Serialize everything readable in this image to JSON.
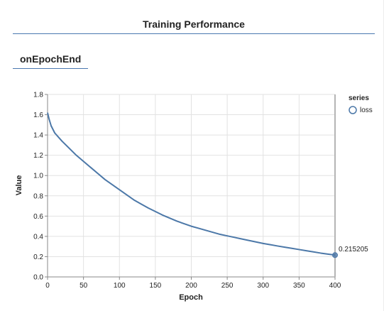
{
  "visor": {
    "title": "Training Performance"
  },
  "surface": {
    "tab_label": "onEpochEnd"
  },
  "chart_data": {
    "type": "line",
    "title": "",
    "xlabel": "Epoch",
    "ylabel": "Value",
    "xlim": [
      0,
      400
    ],
    "ylim": [
      0,
      1.8
    ],
    "x_ticks": [
      0,
      50,
      100,
      150,
      200,
      250,
      300,
      350,
      400
    ],
    "y_ticks": [
      0.0,
      0.2,
      0.4,
      0.6,
      0.8,
      1.0,
      1.2,
      1.4,
      1.6,
      1.8
    ],
    "grid": true,
    "legend": {
      "title": "series",
      "placement": "right"
    },
    "series": [
      {
        "name": "loss",
        "color": "#4c78a8",
        "x": [
          0,
          2,
          5,
          10,
          20,
          30,
          40,
          50,
          60,
          70,
          80,
          90,
          100,
          110,
          120,
          130,
          140,
          150,
          160,
          170,
          180,
          190,
          200,
          210,
          220,
          230,
          240,
          250,
          260,
          270,
          280,
          290,
          300,
          310,
          320,
          330,
          340,
          350,
          360,
          370,
          380,
          390,
          400
        ],
        "y": [
          1.62,
          1.56,
          1.49,
          1.42,
          1.34,
          1.27,
          1.2,
          1.14,
          1.08,
          1.02,
          0.96,
          0.91,
          0.86,
          0.81,
          0.76,
          0.72,
          0.68,
          0.645,
          0.61,
          0.58,
          0.55,
          0.525,
          0.5,
          0.48,
          0.46,
          0.44,
          0.42,
          0.405,
          0.39,
          0.375,
          0.36,
          0.345,
          0.33,
          0.318,
          0.305,
          0.293,
          0.282,
          0.27,
          0.258,
          0.247,
          0.235,
          0.225,
          0.215205
        ]
      }
    ],
    "last_value_label": "0.215205"
  }
}
